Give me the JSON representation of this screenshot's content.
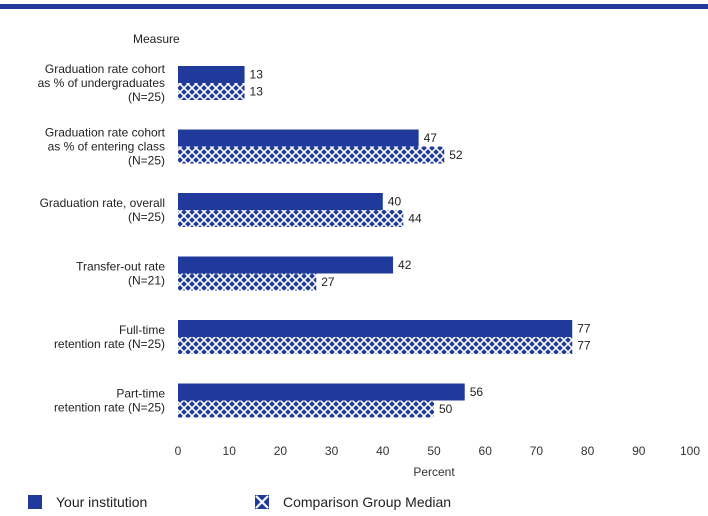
{
  "chart_data": {
    "type": "bar",
    "orientation": "horizontal",
    "categories": [
      [
        "Graduation rate cohort",
        "as % of undergraduates",
        "(N=25)"
      ],
      [
        "Graduation rate cohort",
        "as % of entering class",
        "(N=25)"
      ],
      [
        "Graduation rate, overall",
        "(N=25)"
      ],
      [
        "Transfer-out rate",
        "(N=21)"
      ],
      [
        "Full-time",
        "retention rate (N=25)"
      ],
      [
        "Part-time",
        "retention rate (N=25)"
      ]
    ],
    "series": [
      {
        "name": "Your institution",
        "values": [
          13,
          47,
          40,
          42,
          77,
          56
        ],
        "color": "#1f3a9a",
        "pattern": "solid"
      },
      {
        "name": "Comparison Group Median",
        "values": [
          13,
          52,
          44,
          27,
          77,
          50
        ],
        "color": "#1f3a9a",
        "pattern": "crosshatch"
      }
    ],
    "category_axis_title": "Measure",
    "xlabel": "Percent",
    "xlim": [
      0,
      100
    ],
    "xticks": [
      0,
      10,
      20,
      30,
      40,
      50,
      60,
      70,
      80,
      90,
      100
    ],
    "grid": false,
    "legend_position": "bottom"
  }
}
